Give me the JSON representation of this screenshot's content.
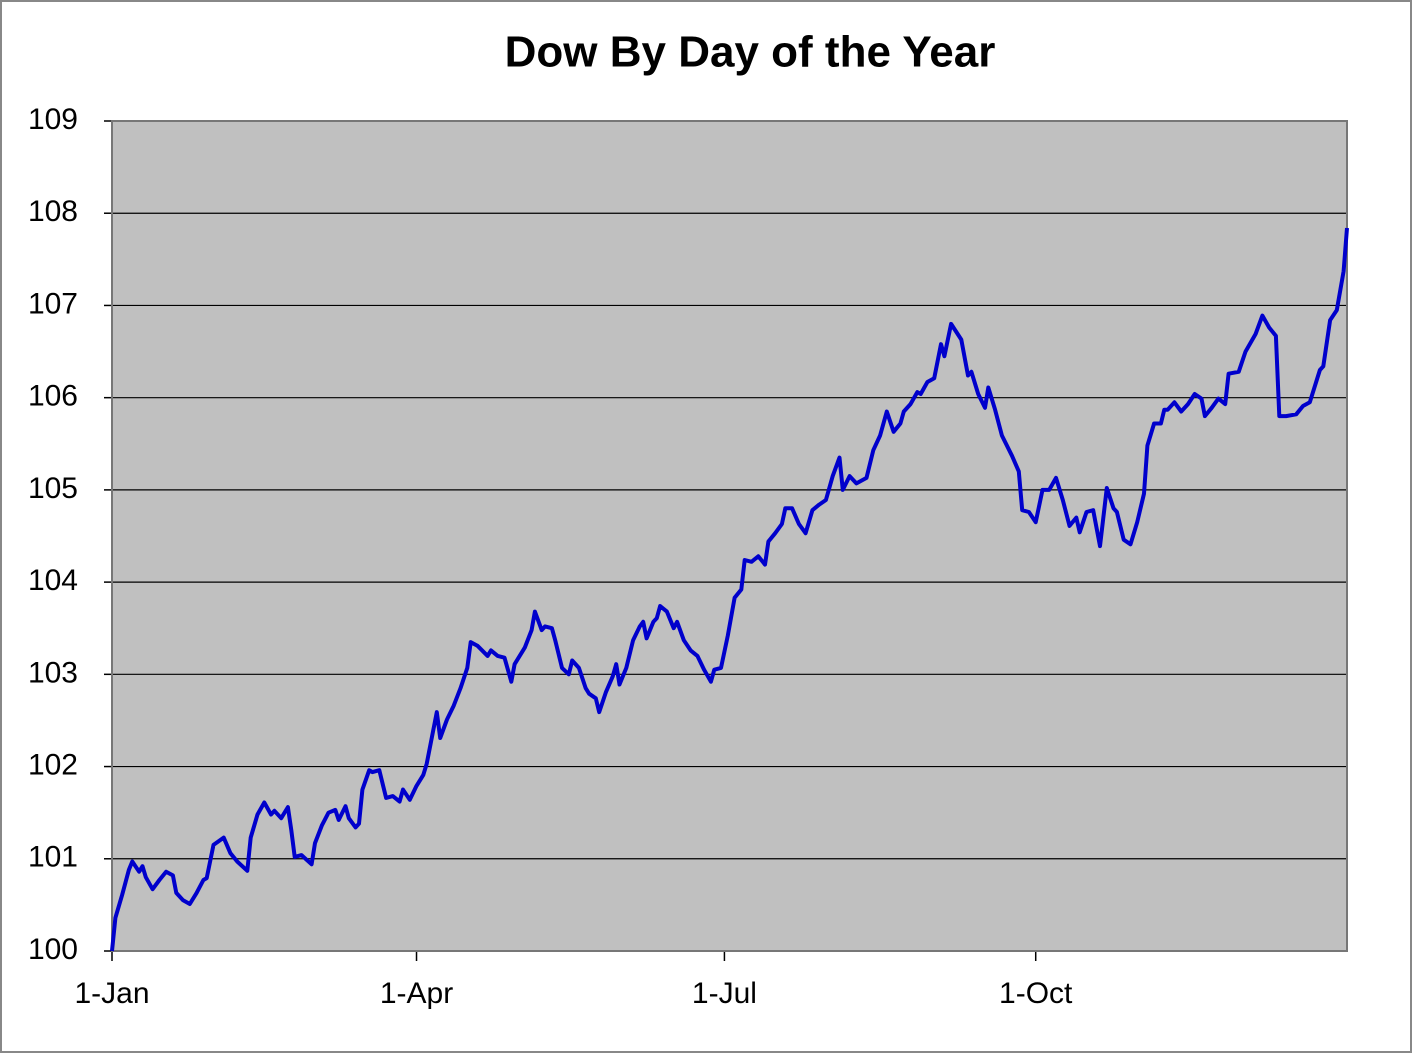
{
  "chart_data": {
    "type": "line",
    "title": "Dow By Day of the Year",
    "x": [
      1,
      2,
      4,
      6,
      7,
      9,
      10,
      11,
      13,
      15,
      17,
      19,
      20,
      22,
      24,
      26,
      28,
      29,
      31,
      34,
      36,
      38,
      41,
      42,
      44,
      46,
      48,
      49,
      51,
      53,
      54,
      55,
      57,
      60,
      61,
      63,
      65,
      67,
      68,
      70,
      71,
      73,
      74,
      75,
      77,
      78,
      80,
      82,
      84,
      86,
      87,
      89,
      91,
      93,
      94,
      97,
      98,
      100,
      102,
      104,
      106,
      107,
      109,
      112,
      113,
      115,
      117,
      119,
      120,
      123,
      125,
      126,
      128,
      129,
      131,
      132,
      134,
      136,
      137,
      139,
      141,
      142,
      144,
      145,
      147,
      149,
      150,
      151,
      153,
      155,
      157,
      158,
      159,
      161,
      162,
      163,
      165,
      167,
      168,
      170,
      172,
      174,
      176,
      178,
      179,
      181,
      183,
      185,
      187,
      188,
      190,
      192,
      194,
      195,
      197,
      199,
      200,
      202,
      204,
      206,
      208,
      210,
      212,
      214,
      216,
      217,
      219,
      221,
      224,
      226,
      228,
      230,
      232,
      234,
      235,
      237,
      239,
      240,
      242,
      244,
      246,
      247,
      249,
      252,
      254,
      255,
      257,
      259,
      260,
      262,
      264,
      267,
      269,
      270,
      272,
      274,
      276,
      278,
      280,
      282,
      284,
      286,
      287,
      289,
      291,
      293,
      295,
      297,
      298,
      300,
      302,
      304,
      306,
      307,
      309,
      311,
      312,
      313,
      315,
      317,
      319,
      321,
      323,
      324,
      326,
      328,
      330,
      331,
      334,
      336,
      339,
      341,
      343,
      345,
      346,
      348,
      351,
      353,
      355,
      358,
      359,
      361,
      363,
      365,
      366
    ],
    "series": [
      {
        "name": "Dow",
        "color": "#0000cc",
        "values": [
          100,
          100.36,
          100.61,
          100.88,
          100.97,
          100.86,
          100.92,
          100.8,
          100.67,
          100.77,
          100.86,
          100.82,
          100.63,
          100.55,
          100.51,
          100.63,
          100.77,
          100.79,
          101.15,
          101.23,
          101.06,
          100.97,
          100.87,
          101.23,
          101.48,
          101.61,
          101.48,
          101.52,
          101.44,
          101.56,
          101.31,
          101.02,
          101.04,
          100.94,
          101.17,
          101.36,
          101.5,
          101.53,
          101.42,
          101.57,
          101.44,
          101.34,
          101.38,
          101.75,
          101.96,
          101.94,
          101.96,
          101.66,
          101.68,
          101.62,
          101.75,
          101.64,
          101.79,
          101.91,
          102.03,
          102.59,
          102.31,
          102.51,
          102.66,
          102.85,
          103.07,
          103.35,
          103.31,
          103.2,
          103.26,
          103.2,
          103.18,
          102.92,
          103.11,
          103.29,
          103.48,
          103.68,
          103.48,
          103.52,
          103.5,
          103.37,
          103.07,
          103.0,
          103.15,
          103.07,
          102.85,
          102.79,
          102.74,
          102.59,
          102.81,
          102.98,
          103.11,
          102.89,
          103.07,
          103.37,
          103.52,
          103.57,
          103.39,
          103.57,
          103.61,
          103.74,
          103.68,
          103.5,
          103.57,
          103.37,
          103.26,
          103.2,
          103.05,
          102.92,
          103.05,
          103.07,
          103.42,
          103.83,
          103.92,
          104.24,
          104.22,
          104.28,
          104.19,
          104.44,
          104.53,
          104.63,
          104.8,
          104.8,
          104.63,
          104.53,
          104.78,
          104.84,
          104.89,
          105.15,
          105.35,
          105.0,
          105.15,
          105.07,
          105.13,
          105.43,
          105.59,
          105.85,
          105.63,
          105.72,
          105.85,
          105.93,
          106.06,
          106.04,
          106.17,
          106.21,
          106.58,
          106.45,
          106.8,
          106.63,
          106.24,
          106.28,
          106.04,
          105.89,
          106.11,
          105.87,
          105.59,
          105.37,
          105.2,
          104.78,
          104.76,
          104.65,
          105.0,
          105.0,
          105.13,
          104.89,
          104.61,
          104.7,
          104.54,
          104.76,
          104.78,
          104.39,
          105.02,
          104.8,
          104.76,
          104.46,
          104.41,
          104.65,
          104.96,
          105.48,
          105.72,
          105.72,
          105.87,
          105.87,
          105.95,
          105.85,
          105.93,
          106.04,
          105.99,
          105.8,
          105.89,
          105.99,
          105.93,
          106.26,
          106.28,
          106.5,
          106.69,
          106.89,
          106.76,
          106.67,
          105.8,
          105.8,
          105.82,
          105.91,
          105.95,
          106.3,
          106.34,
          106.84,
          106.95,
          107.37,
          107.84
        ]
      }
    ],
    "xlim": [
      1,
      366
    ],
    "xticks": [
      {
        "value": 1,
        "label": "1-Jan"
      },
      {
        "value": 91,
        "label": "1-Apr"
      },
      {
        "value": 182,
        "label": "1-Jul"
      },
      {
        "value": 274,
        "label": "1-Oct"
      }
    ],
    "ylim": [
      100,
      109
    ],
    "yticks": [
      100,
      101,
      102,
      103,
      104,
      105,
      106,
      107,
      108,
      109
    ],
    "grid": true
  }
}
